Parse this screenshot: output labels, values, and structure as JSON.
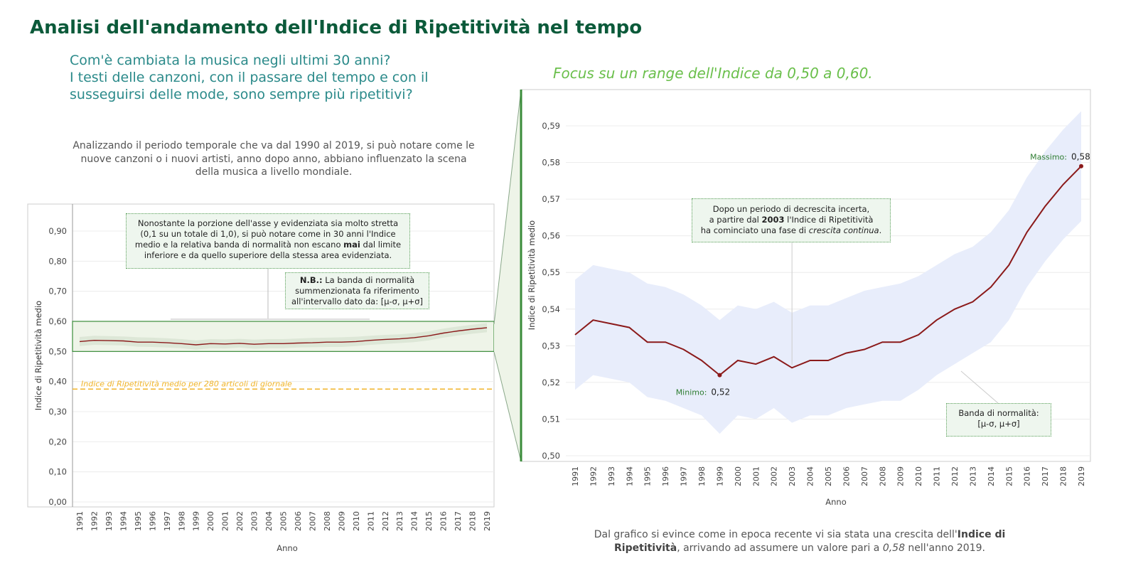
{
  "page": {
    "title": "Analisi dell'andamento dell'Indice di Ripetitività nel tempo",
    "question_lines": [
      "Com'è cambiata la musica negli ultimi 30 anni?",
      "I testi delle canzoni, con il passare del tempo e con il",
      "susseguirsi delle mode, sono sempre più ripetitivi?"
    ],
    "intro_lines": [
      "Analizzando il periodo temporale che va dal 1990 al 2019, si può notare come le",
      "nuove canzoni o i nuovi artisti, anno dopo anno, abbiano influenzato la scena",
      "della musica a livello mondiale."
    ],
    "focus_title": "Focus su un range dell'Indice da 0,50 a 0,60.",
    "conclusion": {
      "p1": "Dal grafico si evince come in epoca recente vi sia stata una crescita dell'",
      "b1": "Indice di",
      "b2": "Ripetitività",
      "p2": ", arrivando ad assumere un valore pari a ",
      "i1": "0,58",
      "p3": " nell'anno 2019."
    },
    "colors": {
      "title": "#0b5a3a",
      "question": "#2b8a8a",
      "focus": "#6abf4b",
      "line": "#8b1a1a",
      "band_left": "#d8e4d2",
      "band_right": "#e8edfb",
      "highlight_border": "#3a8c3a",
      "reference": "#f0b429"
    }
  },
  "chart_data": [
    {
      "type": "line",
      "xlabel": "Anno",
      "ylabel": "Indice di Ripetitività medio",
      "ylim": [
        0,
        0.95
      ],
      "yticks": [
        "0,00",
        "0,10",
        "0,20",
        "0,30",
        "0,40",
        "0,50",
        "0,60",
        "0,70",
        "0,80",
        "0,90"
      ],
      "grid": true,
      "x": [
        1991,
        1992,
        1993,
        1994,
        1995,
        1996,
        1997,
        1998,
        1999,
        2000,
        2001,
        2002,
        2003,
        2004,
        2005,
        2006,
        2007,
        2008,
        2009,
        2010,
        2011,
        2012,
        2013,
        2014,
        2015,
        2016,
        2017,
        2018,
        2019
      ],
      "series": [
        {
          "values": [
            0.533,
            0.537,
            0.536,
            0.535,
            0.531,
            0.531,
            0.529,
            0.526,
            0.522,
            0.526,
            0.525,
            0.527,
            0.524,
            0.526,
            0.526,
            0.528,
            0.529,
            0.531,
            0.531,
            0.533,
            0.537,
            0.54,
            0.542,
            0.546,
            0.552,
            0.561,
            0.568,
            0.574,
            0.579
          ]
        },
        {
          "band_lower": [
            0.518,
            0.522,
            0.521,
            0.52,
            0.516,
            0.515,
            0.513,
            0.511,
            0.506,
            0.511,
            0.51,
            0.513,
            0.509,
            0.511,
            0.511,
            0.513,
            0.514,
            0.515,
            0.515,
            0.518,
            0.522,
            0.525,
            0.528,
            0.531,
            0.537,
            0.546,
            0.553,
            0.559,
            0.564
          ],
          "band_upper": [
            0.548,
            0.552,
            0.551,
            0.55,
            0.547,
            0.546,
            0.544,
            0.541,
            0.537,
            0.541,
            0.54,
            0.542,
            0.539,
            0.541,
            0.541,
            0.543,
            0.545,
            0.546,
            0.547,
            0.549,
            0.552,
            0.555,
            0.557,
            0.561,
            0.567,
            0.576,
            0.583,
            0.589,
            0.594
          ]
        }
      ],
      "reference_line": {
        "value": 0.375,
        "label": "Indice di Ripetitività medio per 280 articoli di giornale"
      },
      "highlight_range": [
        0.5,
        0.6
      ],
      "annotations": [
        {
          "lines": [
            "Nonostante la porzione dell'asse y evidenziata sia molto stretta",
            "(0,1 su un totale di 1,0), si può notare come in 30 anni l'Indice",
            "medio e la relativa banda di normalità non escano |mai| dal limite",
            "inferiore e da quello superiore della stessa area evidenziata."
          ]
        },
        {
          "lines": [
            "|N.B.:| La banda di normalità",
            "summenzionata fa riferimento",
            "all'intervallo dato da: [μ-σ, μ+σ]"
          ]
        }
      ]
    },
    {
      "type": "line",
      "xlabel": "Anno",
      "ylabel": "Indice di Ripetitività medio",
      "ylim": [
        0.499,
        0.596
      ],
      "yticks": [
        "0,50",
        "0,51",
        "0,52",
        "0,53",
        "0,54",
        "0,55",
        "0,56",
        "0,57",
        "0,58",
        "0,59"
      ],
      "grid": true,
      "min_label": "Minimo:",
      "min_value": "0,52",
      "max_label": "Massimo:",
      "max_value": "0,58",
      "annotations": [
        {
          "lines": [
            "Dopo un periodo di decrescita incerta,",
            "a partire dal |2003| l'Indice di Ripetitività",
            "ha cominciato una fase di /crescita continua/."
          ]
        },
        {
          "lines": [
            "Banda di normalità:",
            "[μ-σ, μ+σ]"
          ]
        }
      ]
    }
  ]
}
